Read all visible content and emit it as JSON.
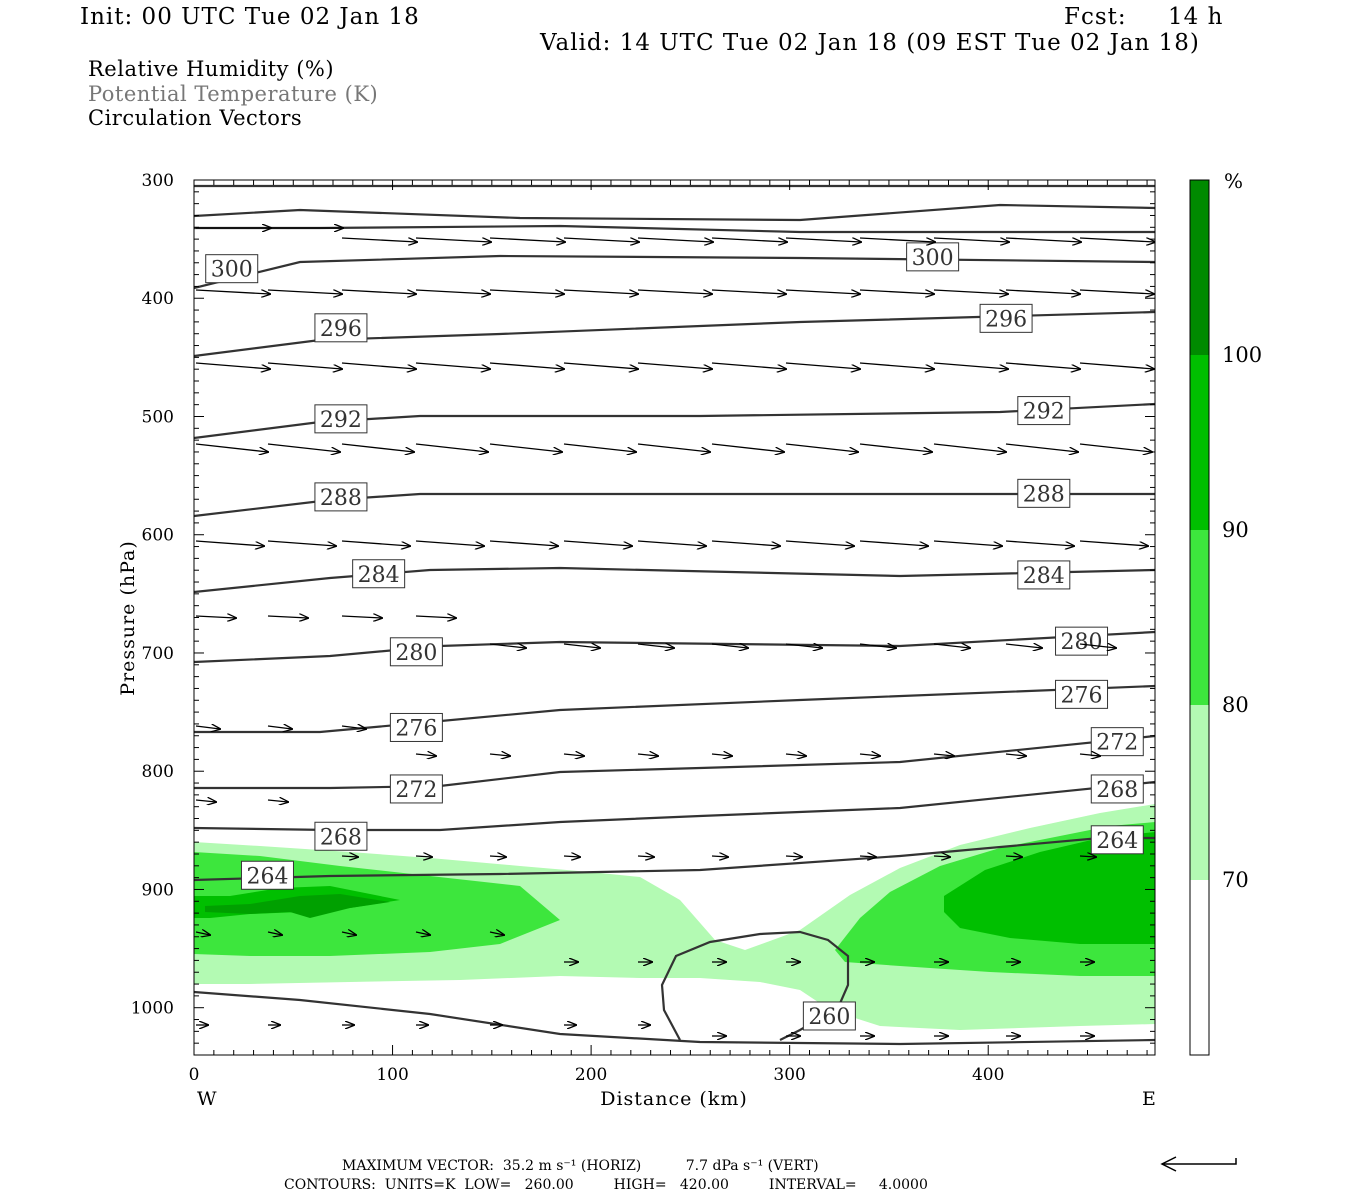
{
  "header": {
    "init": "Init: 00 UTC Tue 02 Jan 18",
    "fcst_label": "Fcst:",
    "fcst_value": "14 h",
    "valid": "Valid: 14 UTC Tue 02 Jan 18 (09 EST Tue 02 Jan 18)"
  },
  "legend": {
    "rh": "Relative Humidity (%)",
    "theta": "Potential Temperature (K)",
    "vectors": "Circulation Vectors"
  },
  "footer": {
    "max_vector": "MAXIMUM VECTOR:  35.2 m s⁻¹ (HORIZ)          7.7 dPa s⁻¹ (VERT)",
    "contours": "CONTOURS:  UNITS=K  LOW=   260.00         HIGH=   420.00         INTERVAL=     4.0000"
  },
  "colors": {
    "rh_70_80": "#b3fab3",
    "rh_80_90": "#3de63d",
    "rh_90_100": "#00bf00",
    "rh_100": "#008a00",
    "contour": "#333333",
    "vector": "#000000"
  },
  "chart_data": {
    "type": "cross-section",
    "xlabel": "Distance (km)",
    "ylabel": "Pressure (hPa)",
    "x_ticks": [
      0,
      100,
      200,
      300,
      400
    ],
    "y_ticks": [
      300,
      400,
      500,
      600,
      700,
      800,
      900,
      1000
    ],
    "xlim": [
      0,
      484
    ],
    "ylim": [
      300,
      1040
    ],
    "y_scale": "pressure (inverted)",
    "left_end_label": "W",
    "right_end_label": "E",
    "colorbar": {
      "unit": "%",
      "levels": [
        70,
        80,
        90,
        100
      ],
      "labels": [
        "70",
        "80",
        "90",
        "100"
      ]
    },
    "theta_contours": [
      {
        "value": 300,
        "label": "300",
        "labels_at_km": [
          19,
          372
        ]
      },
      {
        "value": 296,
        "label": "296",
        "labels_at_km": [
          74,
          409
        ]
      },
      {
        "value": 292,
        "label": "292",
        "labels_at_km": [
          74,
          428
        ]
      },
      {
        "value": 288,
        "label": "288",
        "labels_at_km": [
          74,
          428
        ]
      },
      {
        "value": 284,
        "label": "284",
        "labels_at_km": [
          93,
          428
        ]
      },
      {
        "value": 280,
        "label": "280",
        "labels_at_km": [
          112,
          447
        ]
      },
      {
        "value": 276,
        "label": "276",
        "labels_at_km": [
          112,
          447
        ]
      },
      {
        "value": 272,
        "label": "272",
        "labels_at_km": [
          112,
          465
        ]
      },
      {
        "value": 268,
        "label": "268",
        "labels_at_km": [
          74,
          465
        ]
      },
      {
        "value": 264,
        "label": "264",
        "labels_at_km": [
          37,
          465
        ]
      },
      {
        "value": 260,
        "label": "260",
        "labels_at_km": [
          320
        ]
      }
    ],
    "reference_vector": "←"
  }
}
